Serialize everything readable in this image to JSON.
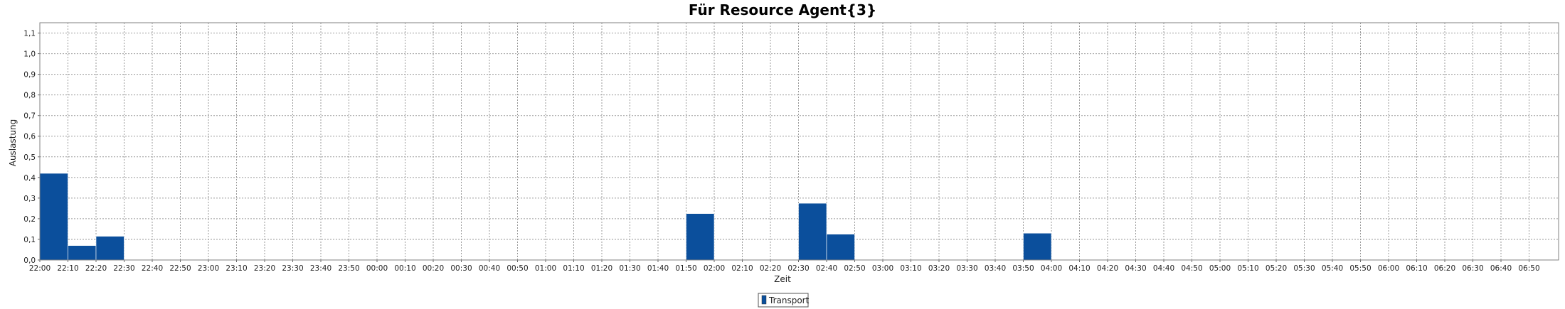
{
  "chart_data": {
    "type": "bar",
    "title": "Für Resource Agent{3}",
    "xlabel": "Zeit",
    "ylabel": "Auslastung",
    "ylim": [
      0,
      1.15
    ],
    "yticks": [
      "0,0",
      "0,1",
      "0,2",
      "0,3",
      "0,4",
      "0,5",
      "0,6",
      "0,7",
      "0,8",
      "0,9",
      "1,0",
      "1,1"
    ],
    "xticks": [
      "22:00",
      "22:10",
      "22:20",
      "22:30",
      "22:40",
      "22:50",
      "23:00",
      "23:10",
      "23:20",
      "23:30",
      "23:40",
      "23:50",
      "00:00",
      "00:10",
      "00:20",
      "00:30",
      "00:40",
      "00:50",
      "01:00",
      "01:10",
      "01:20",
      "01:30",
      "01:40",
      "01:50",
      "02:00",
      "02:10",
      "02:20",
      "02:30",
      "02:40",
      "02:50",
      "03:00",
      "03:10",
      "03:20",
      "03:30",
      "03:40",
      "03:50",
      "04:00",
      "04:10",
      "04:20",
      "04:30",
      "04:40",
      "04:50",
      "05:00",
      "05:10",
      "05:20",
      "05:30",
      "05:40",
      "05:50",
      "06:00",
      "06:10",
      "06:20",
      "06:30",
      "06:40",
      "06:50"
    ],
    "grid": true,
    "legend_position": "bottom-center",
    "series": [
      {
        "name": "Transport",
        "color": "#0b4f9c",
        "bars": [
          {
            "start": "22:00",
            "end": "22:10",
            "value": 0.42
          },
          {
            "start": "22:10",
            "end": "22:20",
            "value": 0.07
          },
          {
            "start": "22:20",
            "end": "22:30",
            "value": 0.115
          },
          {
            "start": "01:50",
            "end": "02:00",
            "value": 0.225
          },
          {
            "start": "02:30",
            "end": "02:40",
            "value": 0.275
          },
          {
            "start": "02:40",
            "end": "02:50",
            "value": 0.125
          },
          {
            "start": "03:50",
            "end": "04:00",
            "value": 0.13
          }
        ]
      }
    ]
  }
}
